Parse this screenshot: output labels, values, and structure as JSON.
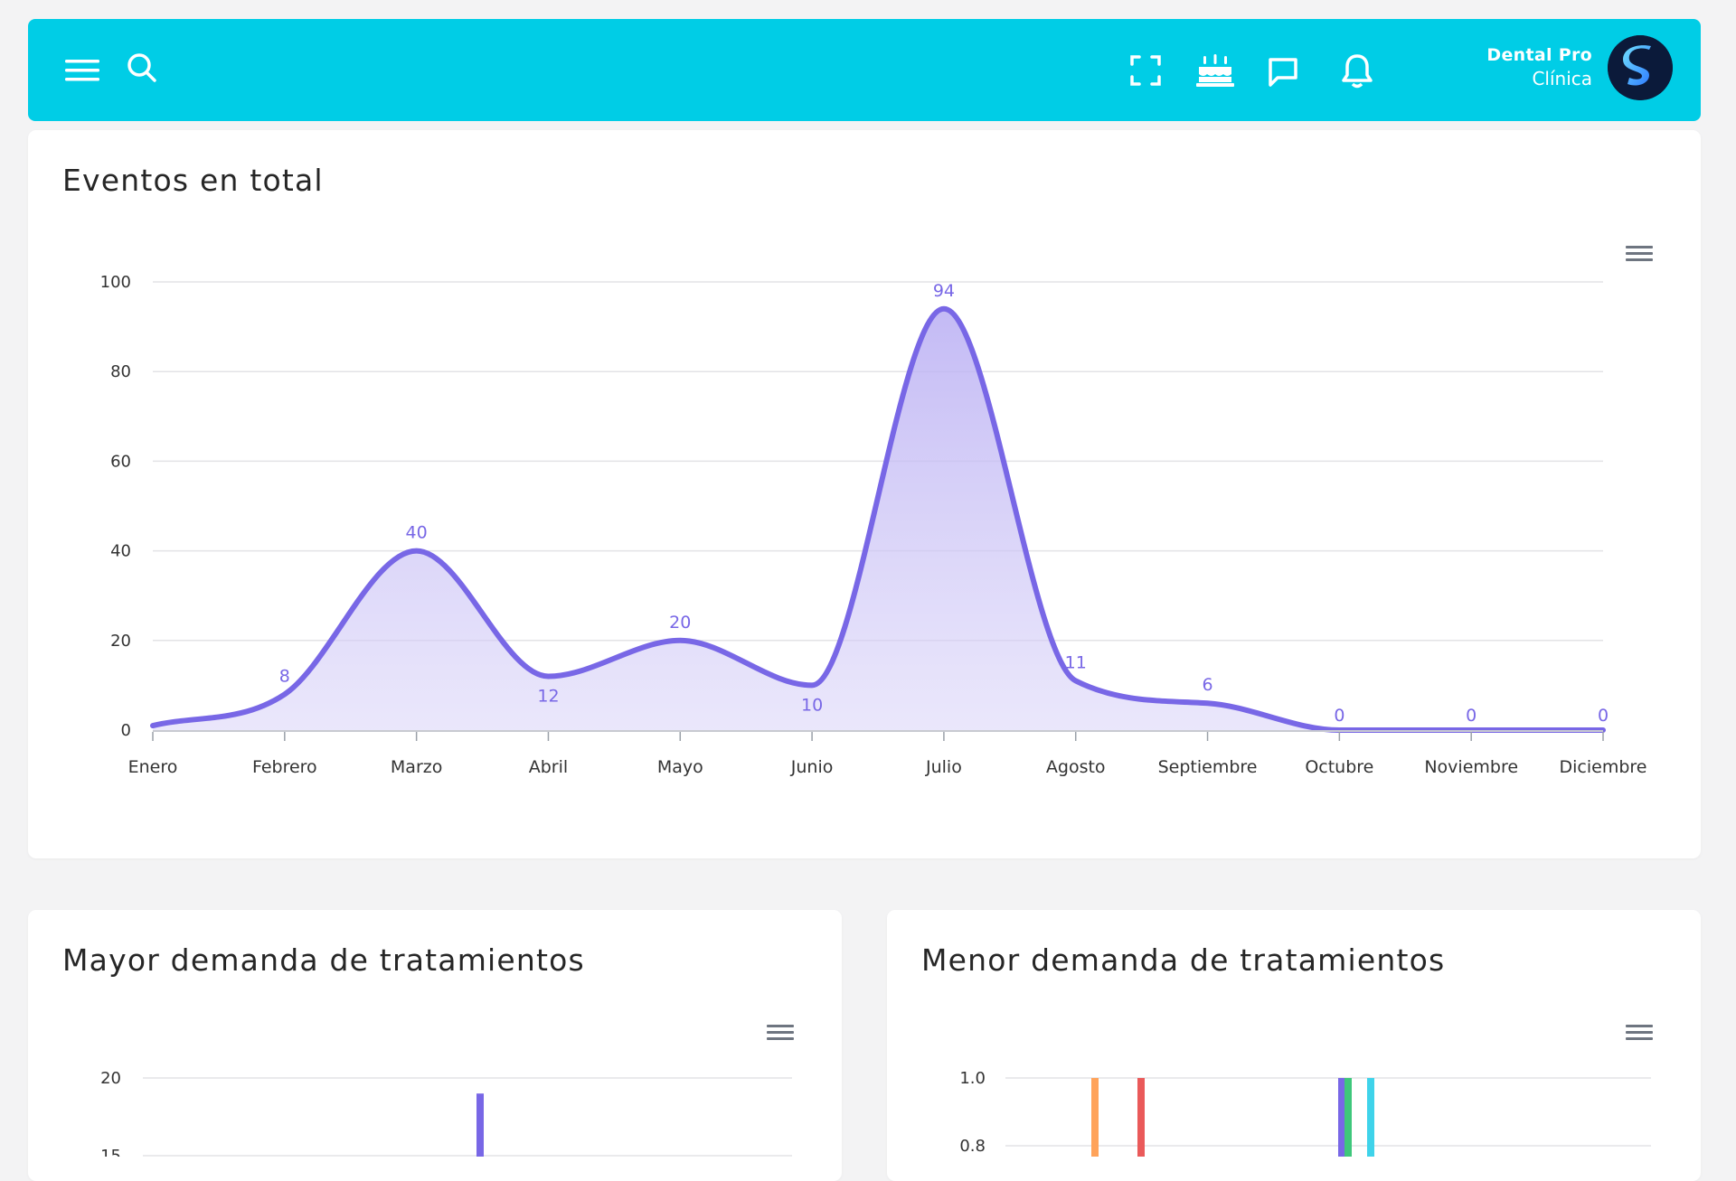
{
  "header": {
    "user_name": "Dental Pro",
    "user_role": "Clínica",
    "avatar_letter": "S",
    "icons": [
      "menu-icon",
      "search-icon",
      "fullscreen-icon",
      "birthday-cake-icon",
      "chat-icon",
      "bell-icon"
    ]
  },
  "colors": {
    "header_bg": "#00cde6",
    "line": "#7867e6",
    "area": "#b9aef3",
    "bar_colors": [
      "#ffa35a",
      "#ea5a5a",
      "#7867e6",
      "#3ec77b",
      "#3fd3ea"
    ]
  },
  "cards": {
    "eventos": {
      "title": "Eventos en total",
      "chart_data": {
        "type": "area",
        "categories": [
          "Enero",
          "Febrero",
          "Marzo",
          "Abril",
          "Mayo",
          "Junio",
          "Julio",
          "Agosto",
          "Septiembre",
          "Octubre",
          "Noviembre",
          "Diciembre"
        ],
        "values": [
          1,
          8,
          40,
          12,
          20,
          10,
          94,
          11,
          6,
          0,
          0,
          0
        ],
        "labels": [
          "",
          "8",
          "40",
          "12",
          "20",
          "10",
          "94",
          "11",
          "6",
          "0",
          "0",
          "0"
        ],
        "yticks": [
          "0",
          "20",
          "40",
          "60",
          "80",
          "100"
        ],
        "ylim": [
          0,
          100
        ],
        "grid": true
      }
    },
    "mayor": {
      "title": "Mayor demanda de tratamientos",
      "chart_data": {
        "type": "bar",
        "yticks": [
          "20",
          "15"
        ],
        "ylim": [
          0,
          20
        ],
        "visible_bars": [
          {
            "value": 19
          }
        ]
      }
    },
    "menor": {
      "title": "Menor demanda de tratamientos",
      "chart_data": {
        "type": "bar",
        "yticks": [
          "1.0",
          "0.8"
        ],
        "ylim": [
          0,
          1
        ],
        "visible_bars": [
          {
            "value": 1
          },
          {
            "value": 1
          },
          {
            "value": 1
          },
          {
            "value": 1
          },
          {
            "value": 1
          }
        ]
      }
    }
  }
}
